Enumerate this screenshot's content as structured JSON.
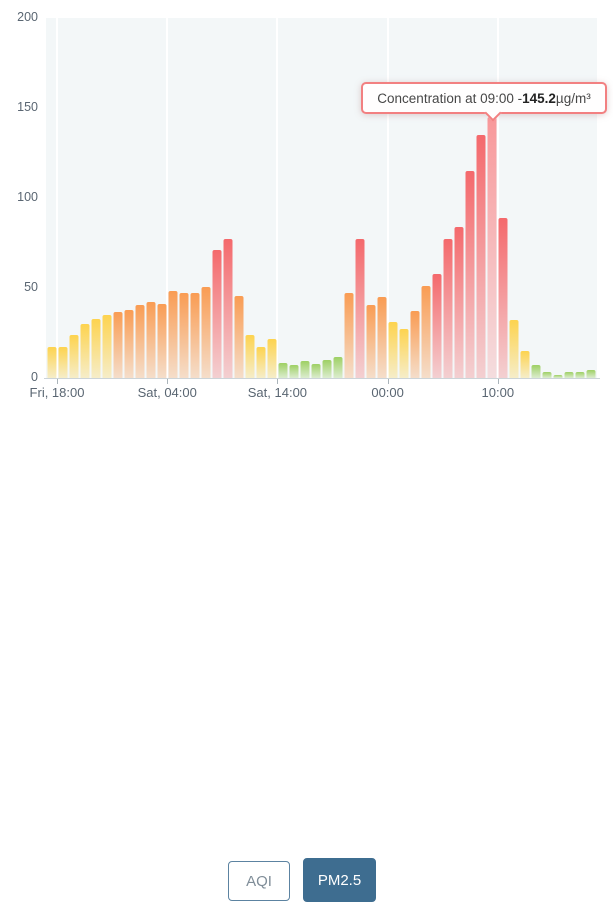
{
  "chart_data": {
    "type": "bar",
    "title": "",
    "xlabel": "",
    "ylabel": "",
    "series_name": "PM2.5 concentration (µg/m³)",
    "ylim": [
      0,
      200
    ],
    "y_ticks": [
      0,
      50,
      100,
      150,
      200
    ],
    "x_tick_labels": [
      "Fri, 18:00",
      "Sat, 04:00",
      "Sat, 14:00",
      "00:00",
      "10:00"
    ],
    "x_tick_after_bar": [
      1,
      11,
      21,
      31,
      41
    ],
    "values": [
      17,
      17.5,
      24,
      30,
      33,
      35,
      36.5,
      38,
      40.5,
      42,
      41,
      48.5,
      47,
      47.5,
      50.5,
      71,
      77,
      45.5,
      24,
      17.5,
      21.5,
      8.5,
      7.5,
      9.5,
      8,
      10,
      11.5,
      47,
      77,
      40.5,
      45,
      31,
      27,
      37,
      51,
      58,
      77,
      84,
      115,
      135,
      145.2,
      89,
      32,
      15,
      7,
      3.5,
      1.5,
      3.5,
      3.5,
      4.5
    ],
    "highlighted_bar_index": 40,
    "highlight_color": "#f8989a",
    "color_thresholds": [
      {
        "max": 12,
        "color": "#9ed064"
      },
      {
        "max": 35.4,
        "color": "#fdd34f"
      },
      {
        "max": 55.4,
        "color": "#f99c53"
      },
      {
        "max": 1000,
        "color": "#f4696c"
      }
    ],
    "plot_bg": "#f3f7f8",
    "grid": "vertical-white-lines",
    "legend_position": "none"
  },
  "tooltip": {
    "prefix": "Concentration at 09:00 - ",
    "value": "145.2",
    "suffix": " µg/m³"
  },
  "buttons": {
    "aqi_label": "AQI",
    "pm25_label": "PM2.5",
    "active": "PM2.5",
    "active_bg": "#3e6d90"
  }
}
